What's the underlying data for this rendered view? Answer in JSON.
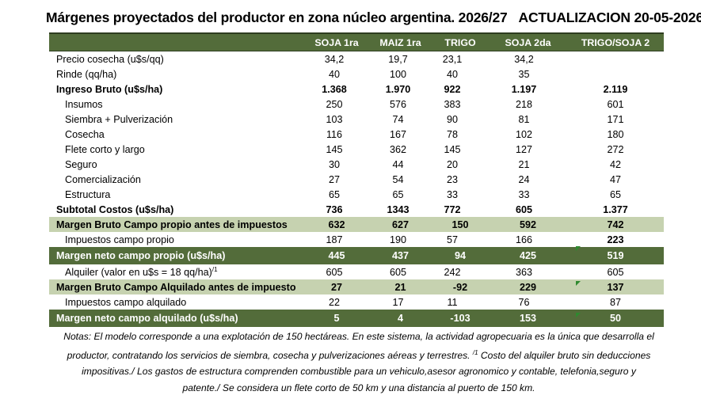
{
  "title": "Márgenes  proyectados del productor en zona núcleo argentina. 2026/27",
  "update_label": "ACTUALIZACION 20-05-2026",
  "columns": [
    "SOJA 1ra",
    "MAIZ 1ra",
    "TRIGO",
    "SOJA 2da",
    "TRIGO/SOJA 2"
  ],
  "rows": [
    {
      "label": "Precio cosecha (u$s/qq)",
      "values": [
        "34,2",
        "19,7",
        "23,1",
        "34,2",
        ""
      ]
    },
    {
      "label": "Rinde (qq/ha)",
      "values": [
        "40",
        "100",
        "40",
        "35",
        ""
      ]
    },
    {
      "label": "Ingreso Bruto (u$s/ha)",
      "values": [
        "1.368",
        "1.970",
        "922",
        "1.197",
        "2.119"
      ]
    },
    {
      "label": "Insumos",
      "values": [
        "250",
        "576",
        "383",
        "218",
        "601"
      ]
    },
    {
      "label": "Siembra + Pulverización",
      "values": [
        "103",
        "74",
        "90",
        "81",
        "171"
      ]
    },
    {
      "label": "Cosecha",
      "values": [
        "116",
        "167",
        "78",
        "102",
        "180"
      ]
    },
    {
      "label": "Flete corto y largo",
      "values": [
        "145",
        "362",
        "145",
        "127",
        "272"
      ]
    },
    {
      "label": "Seguro",
      "values": [
        "30",
        "44",
        "20",
        "21",
        "42"
      ]
    },
    {
      "label": "Comercialización",
      "values": [
        "27",
        "54",
        "23",
        "24",
        "47"
      ]
    },
    {
      "label": "Estructura",
      "values": [
        "65",
        "65",
        "33",
        "33",
        "65"
      ]
    },
    {
      "label": "Subtotal Costos (u$s/ha)",
      "values": [
        "736",
        "1343",
        "772",
        "605",
        "1.377"
      ]
    },
    {
      "label": "Margen Bruto Campo propio antes de impuestos",
      "values": [
        "632",
        "627",
        "150",
        "592",
        "742"
      ]
    },
    {
      "label": "Impuestos  campo propio",
      "values": [
        "187",
        "190",
        "57",
        "166",
        "223"
      ]
    },
    {
      "label": "Margen neto campo propio (u$s/ha)",
      "values": [
        "445",
        "437",
        "94",
        "425",
        "519"
      ]
    },
    {
      "label": "Alquiler (valor en u$s = 18 qq/ha)",
      "sup": "/1",
      "values": [
        "605",
        "605",
        "242",
        "363",
        "605"
      ]
    },
    {
      "label": "Margen Bruto Campo Alquilado antes de impuesto",
      "values": [
        "27",
        "21",
        "-92",
        "229",
        "137"
      ]
    },
    {
      "label": "Impuestos campo alquilado",
      "values": [
        "22",
        "17",
        "11",
        "76",
        "87"
      ]
    },
    {
      "label": "Margen neto campo alquilado (u$s/ha)",
      "values": [
        "5",
        "4",
        "-103",
        "153",
        "50"
      ]
    }
  ],
  "notes": {
    "line1": "Notas: El modelo corresponde a una explotación de 150 hectáreas. En este sistema, la actividad agropecuaria es la única que desarrolla el",
    "line2a": "productor, contratando los servicios de siembra, cosecha y pulverizaciones aéreas y terrestres.",
    "line2_sup": "/1",
    "line2b": " Costo del alquiler bruto sin deducciones",
    "line3": "impositivas./ Los gastos de estructura comprenden combustible para un vehiculo,asesor agronomico y contable, telefonia,seguro y",
    "line4": "patente./ Se considera un flete corto de 50 km y una distancia al puerto de 150 km."
  }
}
